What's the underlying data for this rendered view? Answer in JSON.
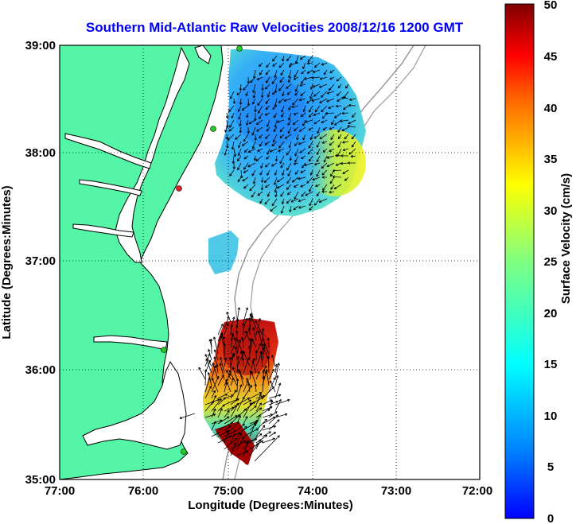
{
  "title": "Southern Mid-Atlantic Raw Velocities 2008/12/16 1200 GMT",
  "colors": {
    "title": "#0000ff",
    "land": "#55f5a8",
    "water": "#ffffff",
    "coast": "#000000",
    "bathymetry": "#9a9a9a",
    "station_active": "#22cc22",
    "station_inactive": "#dd2222"
  },
  "x_axis": {
    "label": "Longitude (Degrees:Minutes)",
    "ticks": [
      "77:00",
      "76:00",
      "75:00",
      "74:00",
      "73:00",
      "72:00"
    ]
  },
  "y_axis": {
    "label": "Latitude (Degrees:Minutes)",
    "ticks": [
      "39:00",
      "38:00",
      "37:00",
      "36:00",
      "35:00"
    ]
  },
  "colorbar": {
    "label": "Surface Velocity (cm/s)",
    "ticks": [
      "50",
      "45",
      "40",
      "35",
      "30",
      "25",
      "20",
      "15",
      "10",
      "5",
      "0"
    ]
  }
}
